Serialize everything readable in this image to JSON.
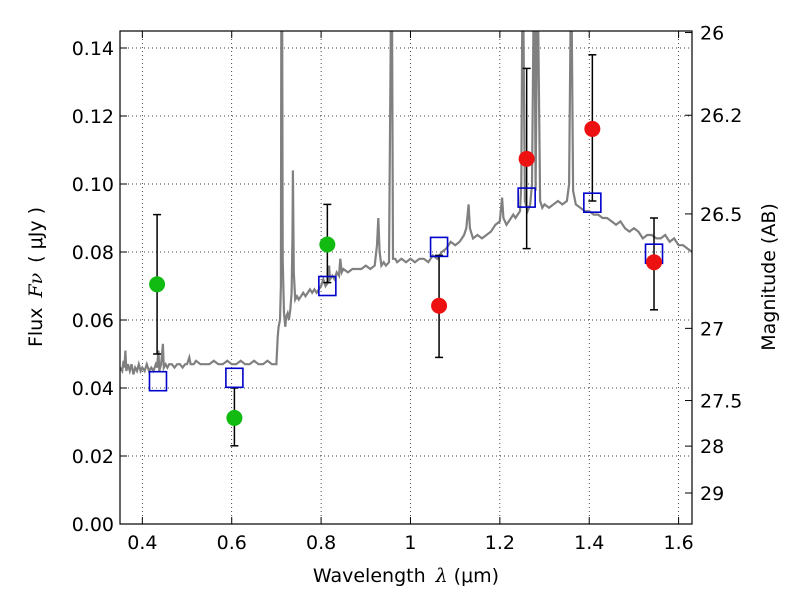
{
  "chart_data": {
    "type": "scatter",
    "xlabel_prefix": "Wavelength",
    "xlabel_symbol": "λ",
    "xlabel_unit": "(μm)",
    "ylabel_prefix": "Flux",
    "ylabel_symbol": "Fν",
    "ylabel_unit": "( μJy )",
    "y2label": "Magnitude (AB)",
    "xlim": [
      0.35,
      1.63
    ],
    "ylim": [
      0.0,
      0.145
    ],
    "grid": true,
    "x_ticks": [
      {
        "value": 0.4,
        "label": "0.4"
      },
      {
        "value": 0.6,
        "label": "0.6"
      },
      {
        "value": 0.8,
        "label": "0.8"
      },
      {
        "value": 1.0,
        "label": "1"
      },
      {
        "value": 1.2,
        "label": "1.2"
      },
      {
        "value": 1.4,
        "label": "1.4"
      },
      {
        "value": 1.6,
        "label": "1.6"
      }
    ],
    "y_ticks": [
      {
        "value": 0.0,
        "label": "0.00"
      },
      {
        "value": 0.02,
        "label": "0.02"
      },
      {
        "value": 0.04,
        "label": "0.04"
      },
      {
        "value": 0.06,
        "label": "0.06"
      },
      {
        "value": 0.08,
        "label": "0.08"
      },
      {
        "value": 0.1,
        "label": "0.10"
      },
      {
        "value": 0.12,
        "label": "0.12"
      },
      {
        "value": 0.14,
        "label": "0.14"
      }
    ],
    "mag_ticks": [
      {
        "value": 26,
        "label": "26"
      },
      {
        "value": 26.2,
        "label": "26.2"
      },
      {
        "value": 26.5,
        "label": "26.5"
      },
      {
        "value": 27,
        "label": "27"
      },
      {
        "value": 27.5,
        "label": "27.5"
      },
      {
        "value": 28,
        "label": "28"
      },
      {
        "value": 29,
        "label": "29"
      }
    ],
    "mag_zero_point": 23.9,
    "colors": {
      "spectrum": "#808080",
      "green_points": "#11bb11",
      "red_points": "#ee1111",
      "model_squares": "#0000cc",
      "error_bars": "#000000"
    },
    "spectrum": [
      [
        0.35,
        0.046
      ],
      [
        0.355,
        0.045
      ],
      [
        0.358,
        0.048
      ],
      [
        0.36,
        0.046
      ],
      [
        0.362,
        0.051
      ],
      [
        0.364,
        0.045
      ],
      [
        0.368,
        0.047
      ],
      [
        0.372,
        0.045
      ],
      [
        0.376,
        0.047
      ],
      [
        0.38,
        0.044
      ],
      [
        0.384,
        0.046
      ],
      [
        0.388,
        0.045
      ],
      [
        0.392,
        0.047
      ],
      [
        0.396,
        0.045
      ],
      [
        0.4,
        0.046
      ],
      [
        0.405,
        0.045
      ],
      [
        0.41,
        0.047
      ],
      [
        0.415,
        0.045
      ],
      [
        0.42,
        0.046
      ],
      [
        0.425,
        0.045
      ],
      [
        0.43,
        0.047
      ],
      [
        0.433,
        0.046
      ],
      [
        0.436,
        0.051
      ],
      [
        0.438,
        0.045
      ],
      [
        0.442,
        0.047
      ],
      [
        0.446,
        0.053
      ],
      [
        0.448,
        0.046
      ],
      [
        0.452,
        0.047
      ],
      [
        0.456,
        0.046
      ],
      [
        0.46,
        0.047
      ],
      [
        0.466,
        0.047
      ],
      [
        0.472,
        0.046
      ],
      [
        0.478,
        0.047
      ],
      [
        0.484,
        0.047
      ],
      [
        0.49,
        0.046
      ],
      [
        0.496,
        0.047
      ],
      [
        0.5,
        0.047
      ],
      [
        0.505,
        0.049
      ],
      [
        0.508,
        0.047
      ],
      [
        0.515,
        0.047
      ],
      [
        0.52,
        0.048
      ],
      [
        0.53,
        0.047
      ],
      [
        0.54,
        0.047
      ],
      [
        0.55,
        0.047
      ],
      [
        0.56,
        0.048
      ],
      [
        0.57,
        0.047
      ],
      [
        0.58,
        0.047
      ],
      [
        0.59,
        0.048
      ],
      [
        0.6,
        0.047
      ],
      [
        0.61,
        0.047
      ],
      [
        0.62,
        0.048
      ],
      [
        0.63,
        0.047
      ],
      [
        0.64,
        0.047
      ],
      [
        0.65,
        0.048
      ],
      [
        0.66,
        0.047
      ],
      [
        0.67,
        0.047
      ],
      [
        0.68,
        0.048
      ],
      [
        0.69,
        0.047
      ],
      [
        0.7,
        0.047
      ],
      [
        0.703,
        0.055
      ],
      [
        0.705,
        0.058
      ],
      [
        0.708,
        0.06
      ],
      [
        0.71,
        0.07
      ],
      [
        0.711,
        0.145
      ],
      [
        0.713,
        0.145
      ],
      [
        0.714,
        0.078
      ],
      [
        0.717,
        0.062
      ],
      [
        0.72,
        0.058
      ],
      [
        0.722,
        0.061
      ],
      [
        0.725,
        0.062
      ],
      [
        0.728,
        0.06
      ],
      [
        0.731,
        0.063
      ],
      [
        0.734,
        0.068
      ],
      [
        0.736,
        0.085
      ],
      [
        0.737,
        0.104
      ],
      [
        0.739,
        0.074
      ],
      [
        0.742,
        0.066
      ],
      [
        0.746,
        0.067
      ],
      [
        0.75,
        0.066
      ],
      [
        0.755,
        0.067
      ],
      [
        0.76,
        0.068
      ],
      [
        0.765,
        0.067
      ],
      [
        0.77,
        0.068
      ],
      [
        0.775,
        0.069
      ],
      [
        0.78,
        0.068
      ],
      [
        0.785,
        0.069
      ],
      [
        0.79,
        0.068
      ],
      [
        0.795,
        0.069
      ],
      [
        0.8,
        0.07
      ],
      [
        0.805,
        0.072
      ],
      [
        0.81,
        0.07
      ],
      [
        0.815,
        0.071
      ],
      [
        0.818,
        0.076
      ],
      [
        0.82,
        0.072
      ],
      [
        0.825,
        0.073
      ],
      [
        0.83,
        0.072
      ],
      [
        0.835,
        0.074
      ],
      [
        0.84,
        0.073
      ],
      [
        0.843,
        0.078
      ],
      [
        0.846,
        0.074
      ],
      [
        0.85,
        0.075
      ],
      [
        0.86,
        0.074
      ],
      [
        0.87,
        0.075
      ],
      [
        0.88,
        0.075
      ],
      [
        0.89,
        0.075
      ],
      [
        0.9,
        0.076
      ],
      [
        0.91,
        0.075
      ],
      [
        0.92,
        0.076
      ],
      [
        0.925,
        0.082
      ],
      [
        0.928,
        0.09
      ],
      [
        0.931,
        0.08
      ],
      [
        0.935,
        0.076
      ],
      [
        0.94,
        0.077
      ],
      [
        0.945,
        0.076
      ],
      [
        0.952,
        0.077
      ],
      [
        0.956,
        0.145
      ],
      [
        0.959,
        0.145
      ],
      [
        0.961,
        0.078
      ],
      [
        0.966,
        0.078
      ],
      [
        0.97,
        0.077
      ],
      [
        0.98,
        0.078
      ],
      [
        0.99,
        0.077
      ],
      [
        1.0,
        0.078
      ],
      [
        1.01,
        0.077
      ],
      [
        1.02,
        0.078
      ],
      [
        1.03,
        0.078
      ],
      [
        1.04,
        0.077
      ],
      [
        1.05,
        0.079
      ],
      [
        1.06,
        0.078
      ],
      [
        1.07,
        0.08
      ],
      [
        1.08,
        0.081
      ],
      [
        1.09,
        0.083
      ],
      [
        1.1,
        0.082
      ],
      [
        1.11,
        0.083
      ],
      [
        1.12,
        0.085
      ],
      [
        1.125,
        0.087
      ],
      [
        1.13,
        0.094
      ],
      [
        1.133,
        0.087
      ],
      [
        1.14,
        0.084
      ],
      [
        1.15,
        0.085
      ],
      [
        1.16,
        0.084
      ],
      [
        1.17,
        0.085
      ],
      [
        1.18,
        0.086
      ],
      [
        1.19,
        0.088
      ],
      [
        1.2,
        0.089
      ],
      [
        1.205,
        0.096
      ],
      [
        1.208,
        0.09
      ],
      [
        1.215,
        0.088
      ],
      [
        1.22,
        0.089
      ],
      [
        1.225,
        0.09
      ],
      [
        1.23,
        0.091
      ],
      [
        1.235,
        0.09
      ],
      [
        1.24,
        0.091
      ],
      [
        1.245,
        0.092
      ],
      [
        1.248,
        0.1
      ],
      [
        1.25,
        0.145
      ],
      [
        1.253,
        0.145
      ],
      [
        1.256,
        0.095
      ],
      [
        1.262,
        0.092
      ],
      [
        1.268,
        0.094
      ],
      [
        1.272,
        0.1
      ],
      [
        1.275,
        0.145
      ],
      [
        1.278,
        0.145
      ],
      [
        1.28,
        0.098
      ],
      [
        1.283,
        0.145
      ],
      [
        1.286,
        0.145
      ],
      [
        1.29,
        0.095
      ],
      [
        1.295,
        0.093
      ],
      [
        1.3,
        0.094
      ],
      [
        1.31,
        0.093
      ],
      [
        1.32,
        0.094
      ],
      [
        1.33,
        0.095
      ],
      [
        1.34,
        0.094
      ],
      [
        1.35,
        0.095
      ],
      [
        1.355,
        0.1
      ],
      [
        1.358,
        0.145
      ],
      [
        1.361,
        0.145
      ],
      [
        1.364,
        0.098
      ],
      [
        1.37,
        0.094
      ],
      [
        1.38,
        0.093
      ],
      [
        1.39,
        0.092
      ],
      [
        1.4,
        0.092
      ],
      [
        1.41,
        0.091
      ],
      [
        1.42,
        0.091
      ],
      [
        1.43,
        0.09
      ],
      [
        1.44,
        0.09
      ],
      [
        1.45,
        0.089
      ],
      [
        1.46,
        0.088
      ],
      [
        1.47,
        0.089
      ],
      [
        1.48,
        0.087
      ],
      [
        1.49,
        0.086
      ],
      [
        1.5,
        0.087
      ],
      [
        1.51,
        0.086
      ],
      [
        1.52,
        0.084
      ],
      [
        1.53,
        0.085
      ],
      [
        1.54,
        0.085
      ],
      [
        1.55,
        0.084
      ],
      [
        1.56,
        0.084
      ],
      [
        1.57,
        0.085
      ],
      [
        1.58,
        0.083
      ],
      [
        1.59,
        0.084
      ],
      [
        1.6,
        0.082
      ],
      [
        1.61,
        0.082
      ],
      [
        1.62,
        0.081
      ],
      [
        1.63,
        0.08
      ]
    ],
    "observed": [
      {
        "x": 0.433,
        "y": 0.0705,
        "err_low": 0.05,
        "err_high": 0.091,
        "group": "green"
      },
      {
        "x": 0.606,
        "y": 0.0312,
        "err_low": 0.023,
        "err_high": 0.04,
        "group": "green"
      },
      {
        "x": 0.814,
        "y": 0.0822,
        "err_low": 0.071,
        "err_high": 0.094,
        "group": "green"
      },
      {
        "x": 1.064,
        "y": 0.0642,
        "err_low": 0.049,
        "err_high": 0.079,
        "group": "red"
      },
      {
        "x": 1.26,
        "y": 0.1074,
        "err_low": 0.081,
        "err_high": 0.134,
        "group": "red"
      },
      {
        "x": 1.407,
        "y": 0.1162,
        "err_low": 0.095,
        "err_high": 0.138,
        "group": "red"
      },
      {
        "x": 1.545,
        "y": 0.077,
        "err_low": 0.063,
        "err_high": 0.09,
        "group": "red"
      }
    ],
    "model": [
      {
        "x": 0.435,
        "y": 0.042
      },
      {
        "x": 0.606,
        "y": 0.043
      },
      {
        "x": 0.814,
        "y": 0.07
      },
      {
        "x": 1.064,
        "y": 0.0815
      },
      {
        "x": 1.26,
        "y": 0.096
      },
      {
        "x": 1.407,
        "y": 0.0945
      },
      {
        "x": 1.545,
        "y": 0.0795
      }
    ]
  }
}
